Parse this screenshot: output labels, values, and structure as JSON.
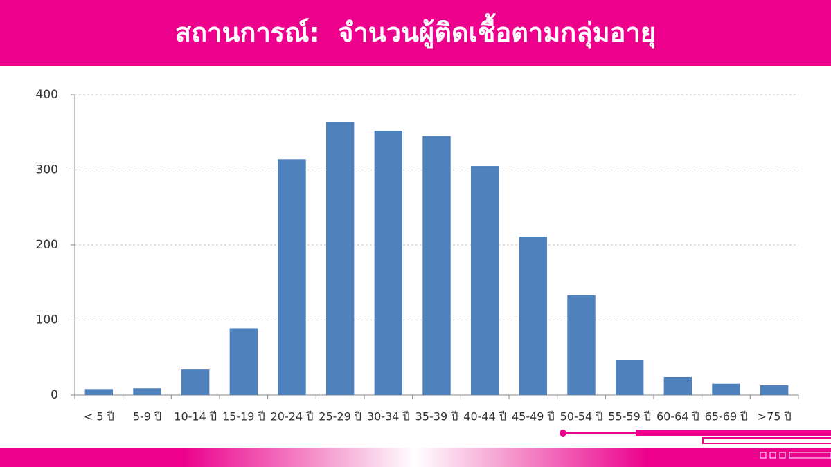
{
  "chart_data": {
    "type": "bar",
    "title": "สถานการณ์:  จำนวนผู้ติดเชื้อตามกลุ่มอายุ",
    "categories": [
      "< 5 ปี",
      "5-9 ปี",
      "10-14 ปี",
      "15-19 ปี",
      "20-24 ปี",
      "25-29 ปี",
      "30-34 ปี",
      "35-39 ปี",
      "40-44 ปี",
      "45-49 ปี",
      "50-54 ปี",
      "55-59 ปี",
      "60-64 ปี",
      "65-69 ปี",
      ">75 ปี"
    ],
    "values": [
      8,
      9,
      34,
      89,
      314,
      364,
      352,
      345,
      305,
      211,
      133,
      47,
      24,
      15,
      13
    ],
    "color": "#4f81bd",
    "ylim": [
      0,
      400
    ],
    "yticks": [
      0,
      100,
      200,
      300,
      400
    ],
    "grid": true
  }
}
